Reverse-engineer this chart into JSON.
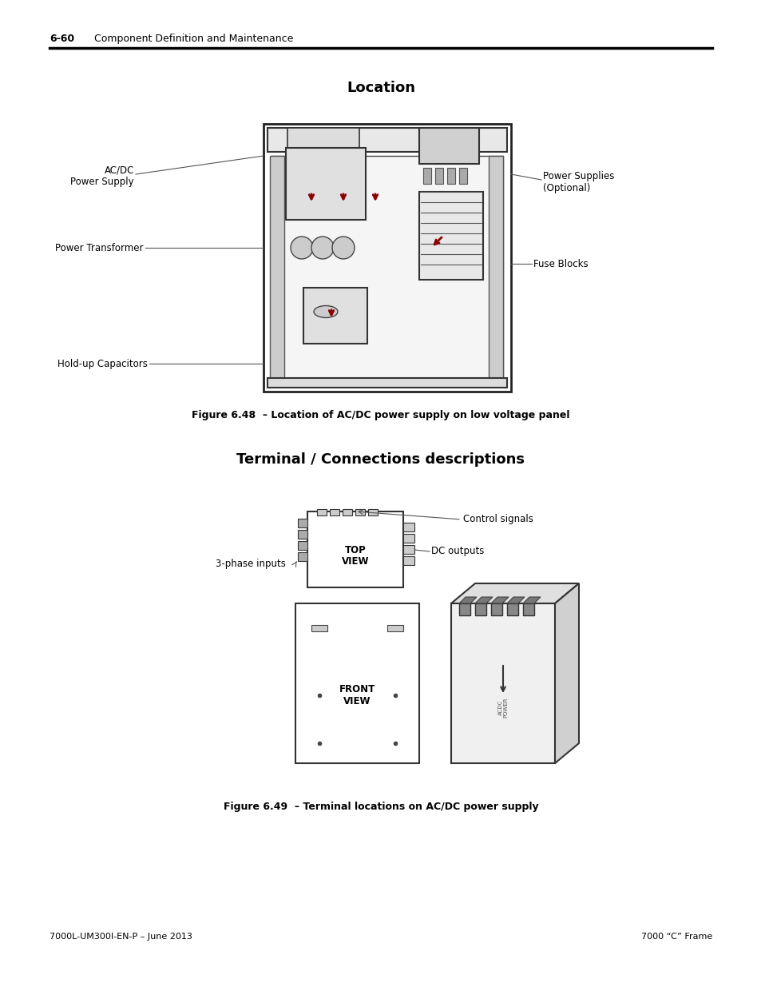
{
  "page_header_number": "6-60",
  "page_header_text": "Component Definition and Maintenance",
  "section1_title": "Location",
  "figure1_caption": "Figure 6.48  – Location of AC/DC power supply on low voltage panel",
  "section2_title": "Terminal / Connections descriptions",
  "figure2_caption": "Figure 6.49  – Terminal locations on AC/DC power supply",
  "footer_left": "7000L-UM300I-EN-P – June 2013",
  "footer_right": "7000 “C” Frame",
  "labels_fig1": {
    "ac_dc": "AC/DC\nPower Supply",
    "power_transformer": "Power Transformer",
    "hold_up": "Hold-up Capacitors",
    "power_supplies": "Power Supplies\n(Optional)",
    "fuse_blocks": "Fuse Blocks"
  },
  "labels_fig2": {
    "control_signals": "Control signals",
    "dc_outputs": "DC outputs",
    "three_phase": "3-phase inputs",
    "top_view": "TOP\nVIEW",
    "front_view": "FRONT\nVIEW"
  },
  "bg_color": "#ffffff",
  "text_color": "#000000",
  "line_color": "#000000",
  "arrow_color": "#8b0000"
}
